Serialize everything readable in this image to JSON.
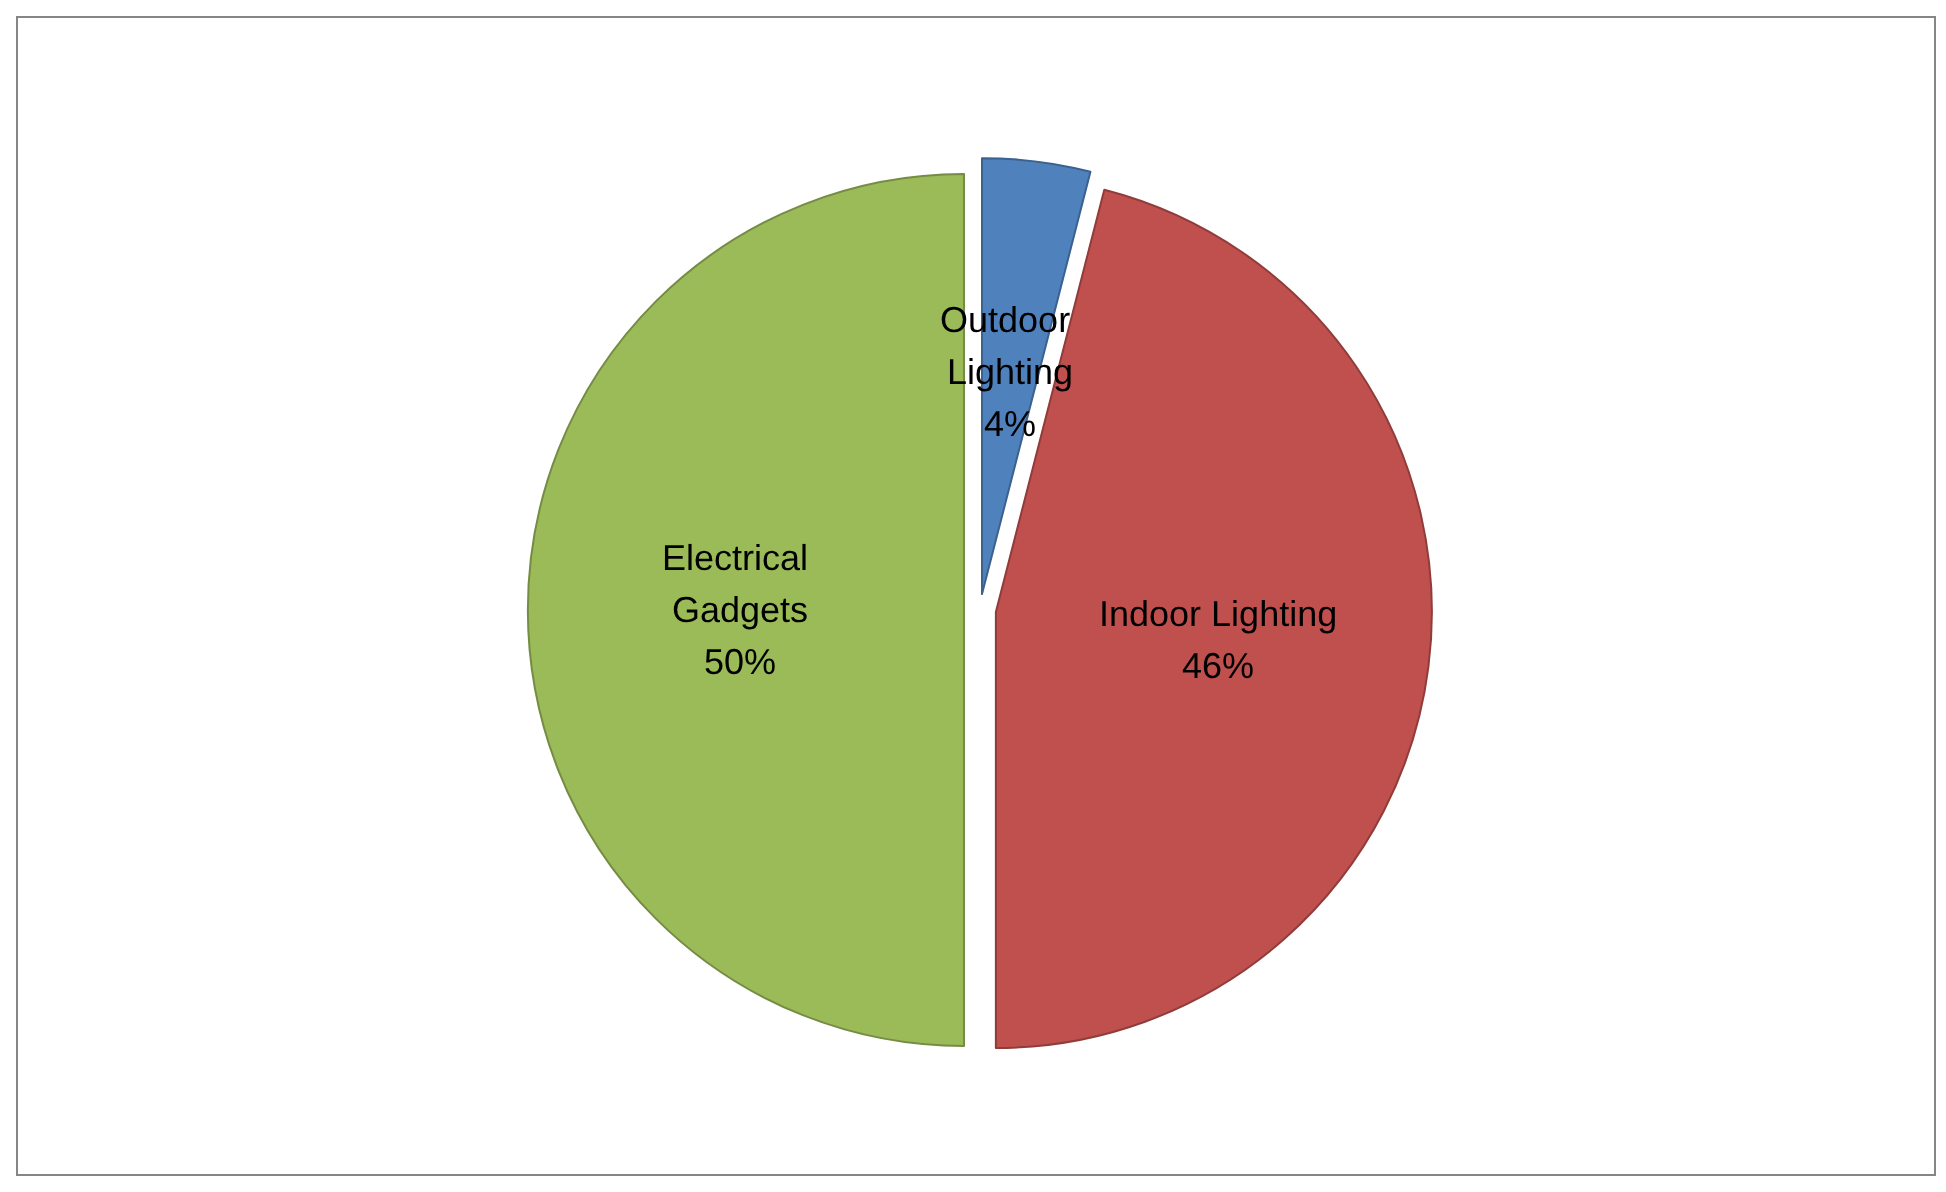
{
  "chart_data": {
    "type": "pie",
    "categories": [
      "Outdoor Lighting",
      "Indoor Lighting",
      "Electrical Gadgets"
    ],
    "values": [
      4,
      46,
      50
    ],
    "value_labels": [
      "4%",
      "46%",
      "50%"
    ],
    "colors": [
      "#4f81bd",
      "#c0504d",
      "#9bbb59"
    ],
    "legend": false
  }
}
